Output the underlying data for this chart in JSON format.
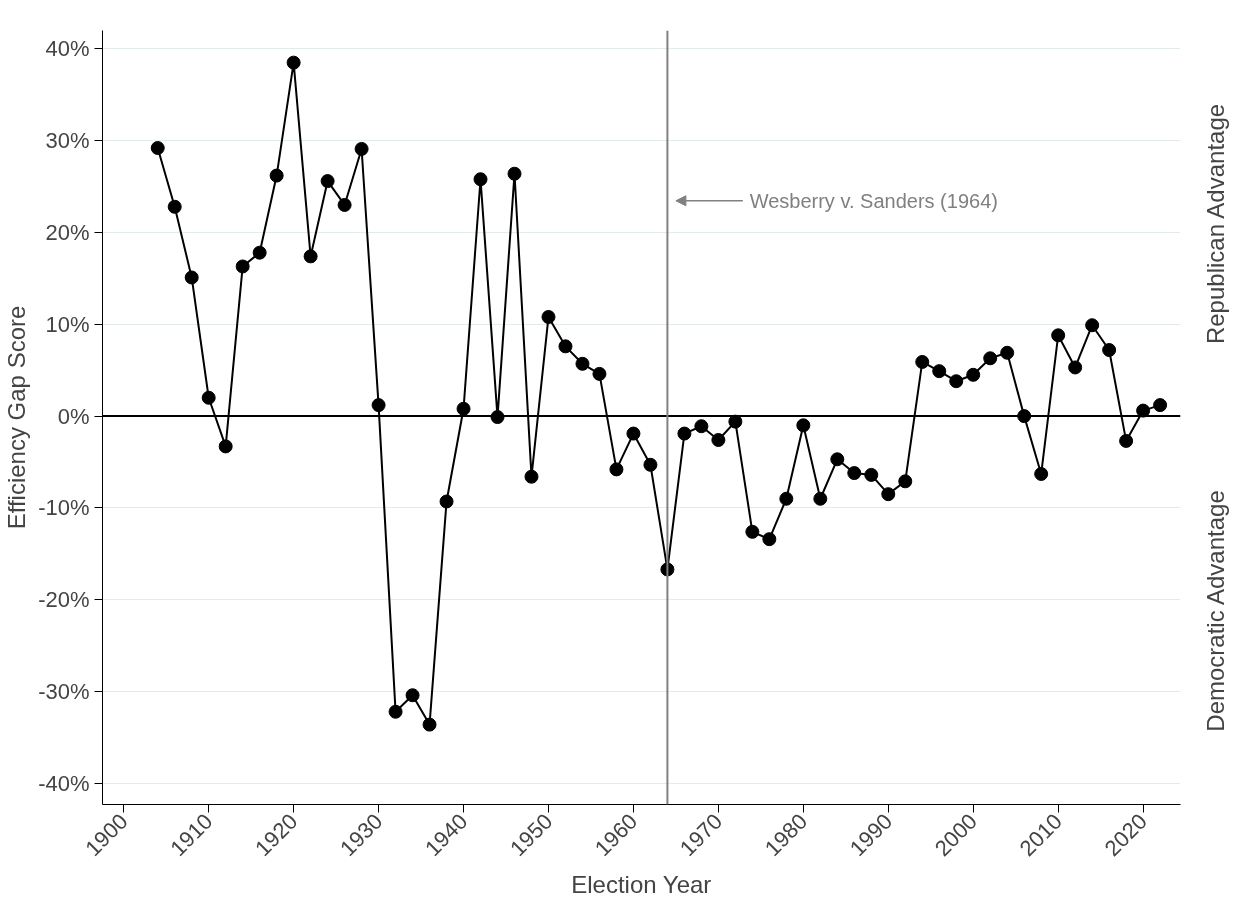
{
  "chart_data": {
    "type": "line",
    "xlabel": "Election Year",
    "ylabel": "Efficiency Gap Score",
    "x": [
      1904,
      1906,
      1908,
      1910,
      1912,
      1914,
      1916,
      1918,
      1920,
      1922,
      1924,
      1926,
      1928,
      1930,
      1932,
      1934,
      1936,
      1938,
      1940,
      1942,
      1944,
      1946,
      1948,
      1950,
      1952,
      1954,
      1956,
      1958,
      1960,
      1962,
      1964,
      1966,
      1968,
      1970,
      1972,
      1974,
      1976,
      1978,
      1980,
      1982,
      1984,
      1986,
      1988,
      1990,
      1992,
      1994,
      1996,
      1998,
      2000,
      2002,
      2004,
      2006,
      2008,
      2010,
      2012,
      2014,
      2016,
      2018,
      2020,
      2022
    ],
    "series": [
      {
        "color": "#000000",
        "values": [
          29.2,
          22.8,
          15.1,
          2.0,
          -3.3,
          16.3,
          17.8,
          26.2,
          38.5,
          17.4,
          25.6,
          23.0,
          29.1,
          1.2,
          -32.2,
          -30.4,
          -33.6,
          -9.3,
          0.8,
          25.8,
          -0.1,
          26.4,
          -6.6,
          10.8,
          7.6,
          5.7,
          4.6,
          -5.8,
          -1.9,
          -5.3,
          -16.7,
          -1.9,
          -1.1,
          -2.6,
          -0.6,
          -12.6,
          -13.4,
          -9.0,
          -1.0,
          -9.0,
          -4.7,
          -6.2,
          -6.4,
          -8.5,
          -7.1,
          5.9,
          4.9,
          3.8,
          4.5,
          6.3,
          6.9,
          0.0,
          -6.3,
          8.8,
          5.3,
          9.9,
          7.2,
          -2.7,
          0.6,
          1.2
        ]
      }
    ],
    "marker": "circle",
    "line_style": "solid",
    "grid": "y",
    "xlim": [
      1897.5,
      2024.4
    ],
    "ylim": [
      -42.3,
      42.0
    ],
    "xticks": [
      1900,
      1910,
      1920,
      1930,
      1940,
      1950,
      1960,
      1970,
      1980,
      1990,
      2000,
      2010,
      2020
    ],
    "yticks": [
      {
        "value": -40,
        "label": "-40%"
      },
      {
        "value": -30,
        "label": "-30%"
      },
      {
        "value": -20,
        "label": "-20%"
      },
      {
        "value": -10,
        "label": "-10%"
      },
      {
        "value": 0,
        "label": "0%"
      },
      {
        "value": 10,
        "label": "10%"
      },
      {
        "value": 20,
        "label": "20%"
      },
      {
        "value": 30,
        "label": "30%"
      },
      {
        "value": 40,
        "label": "40%"
      }
    ],
    "ref_lines": [
      {
        "axis": "y",
        "value": 0,
        "color": "#000000"
      },
      {
        "axis": "x",
        "value": 1964,
        "label": "Wesberry v. Sanders (1964)",
        "color": "#808080"
      }
    ],
    "annotations": [
      "Republican Advantage",
      "Democratic Advantage"
    ]
  }
}
